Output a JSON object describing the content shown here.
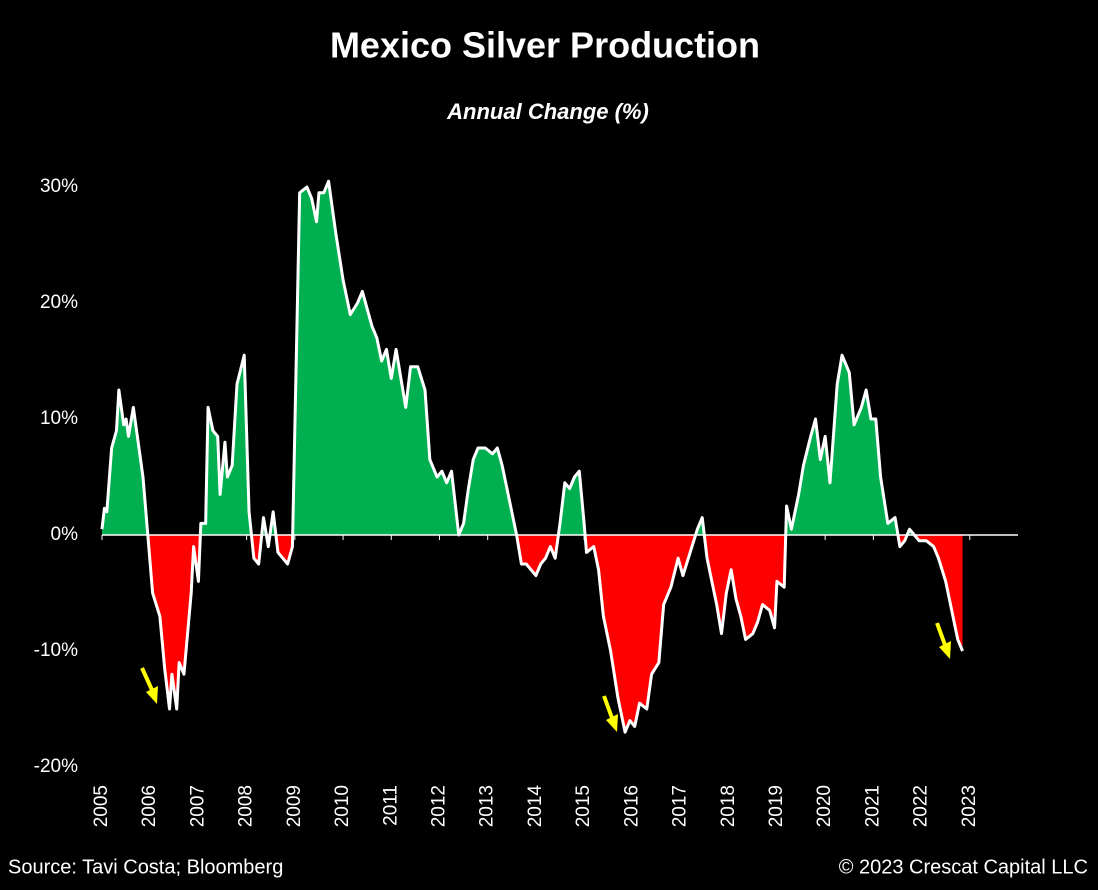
{
  "chart_data": {
    "type": "area",
    "title": "Mexico Silver Production",
    "subtitle": "Annual Change (%)",
    "source": "Source: Tavi Costa; Bloomberg",
    "copyright": "© 2023 Crescat Capital LLC",
    "xlim": [
      2005,
      2024
    ],
    "ylim": [
      -20,
      30
    ],
    "xticks": [
      2005,
      2006,
      2007,
      2008,
      2009,
      2010,
      2011,
      2012,
      2013,
      2014,
      2015,
      2016,
      2017,
      2018,
      2019,
      2020,
      2021,
      2022,
      2023
    ],
    "yticks": [
      {
        "value": -20,
        "label": "-20%"
      },
      {
        "value": -10,
        "label": "-10%"
      },
      {
        "value": 0,
        "label": "0%"
      },
      {
        "value": 10,
        "label": "10%"
      },
      {
        "value": 20,
        "label": "20%"
      },
      {
        "value": 30,
        "label": "30%"
      }
    ],
    "positive_color": "#00b050",
    "negative_color": "#ff0000",
    "line_color": "#ffffff",
    "x": [
      2005.0,
      2005.05,
      2005.1,
      2005.2,
      2005.3,
      2005.35,
      2005.45,
      2005.5,
      2005.55,
      2005.65,
      2005.75,
      2005.85,
      2005.95,
      2006.05,
      2006.2,
      2006.3,
      2006.4,
      2006.45,
      2006.55,
      2006.6,
      2006.7,
      2006.85,
      2006.9,
      2007.0,
      2007.05,
      2007.15,
      2007.2,
      2007.3,
      2007.4,
      2007.45,
      2007.55,
      2007.6,
      2007.7,
      2007.8,
      2007.95,
      2008.05,
      2008.15,
      2008.25,
      2008.35,
      2008.45,
      2008.55,
      2008.65,
      2008.75,
      2008.85,
      2008.95,
      2009.1,
      2009.25,
      2009.35,
      2009.45,
      2009.5,
      2009.6,
      2009.7,
      2009.85,
      2010.0,
      2010.15,
      2010.3,
      2010.4,
      2010.5,
      2010.6,
      2010.7,
      2010.8,
      2010.9,
      2011.0,
      2011.1,
      2011.2,
      2011.3,
      2011.4,
      2011.55,
      2011.7,
      2011.8,
      2011.95,
      2012.05,
      2012.15,
      2012.25,
      2012.4,
      2012.5,
      2012.6,
      2012.7,
      2012.8,
      2012.95,
      2013.1,
      2013.2,
      2013.3,
      2013.45,
      2013.6,
      2013.7,
      2013.8,
      2013.9,
      2014.0,
      2014.1,
      2014.2,
      2014.3,
      2014.4,
      2014.5,
      2014.6,
      2014.7,
      2014.8,
      2014.9,
      2015.0,
      2015.05,
      2015.2,
      2015.3,
      2015.4,
      2015.55,
      2015.7,
      2015.85,
      2015.95,
      2016.05,
      2016.15,
      2016.3,
      2016.4,
      2016.55,
      2016.65,
      2016.8,
      2016.95,
      2017.05,
      2017.2,
      2017.35,
      2017.45,
      2017.55,
      2017.65,
      2017.75,
      2017.85,
      2017.95,
      2018.05,
      2018.15,
      2018.25,
      2018.35,
      2018.5,
      2018.6,
      2018.7,
      2018.85,
      2018.95,
      2019.0,
      2019.15,
      2019.2,
      2019.3,
      2019.45,
      2019.55,
      2019.7,
      2019.8,
      2019.9,
      2020.0,
      2020.1,
      2020.25,
      2020.35,
      2020.5,
      2020.6,
      2020.75,
      2020.85,
      2020.95,
      2021.05,
      2021.15,
      2021.3,
      2021.45,
      2021.55,
      2021.65,
      2021.75,
      2021.85,
      2021.95,
      2022.1,
      2022.25,
      2022.35,
      2022.5,
      2022.6,
      2022.75,
      2022.85
    ],
    "values": [
      0.5,
      2.3,
      2,
      7.5,
      9,
      12.5,
      9.5,
      10,
      8.5,
      11,
      8,
      5,
      0,
      -5,
      -7,
      -11.5,
      -15,
      -12,
      -15,
      -11,
      -12,
      -5,
      -1,
      -4,
      1,
      1,
      11,
      9,
      8.5,
      3.5,
      8,
      5,
      6,
      13,
      15.5,
      2,
      -2,
      -2.5,
      1.5,
      -1,
      2,
      -1.5,
      -2,
      -2.5,
      -1,
      29.5,
      30,
      29,
      27,
      29.5,
      29.5,
      30.5,
      26,
      22,
      19,
      20,
      21,
      19.5,
      18,
      17,
      15,
      16,
      13.5,
      16,
      13.5,
      11,
      14.5,
      14.5,
      12.5,
      6.5,
      5,
      5.5,
      4.5,
      5.5,
      0,
      1,
      4,
      6.5,
      7.5,
      7.5,
      7,
      7.5,
      6,
      3,
      0,
      -2.5,
      -2.5,
      -3,
      -3.5,
      -2.5,
      -2,
      -1,
      -2,
      1,
      4.5,
      4,
      5,
      5.5,
      1,
      -1.5,
      -1,
      -3,
      -7,
      -10,
      -14,
      -17,
      -16,
      -16.5,
      -14.5,
      -15,
      -12,
      -11,
      -6,
      -4.5,
      -2,
      -3.5,
      -1.5,
      0.5,
      1.5,
      -2,
      -4,
      -6,
      -8.5,
      -5,
      -3,
      -5.5,
      -7,
      -9,
      -8.5,
      -7.5,
      -6,
      -6.5,
      -8,
      -4,
      -4.5,
      2.5,
      0.5,
      3.5,
      6,
      8.5,
      10,
      6.5,
      8.5,
      4.5,
      13,
      15.5,
      14,
      9.5,
      11,
      12.5,
      10,
      10,
      5,
      1,
      1.5,
      -1,
      -0.5,
      0.5,
      0,
      -0.5,
      -0.5,
      -1,
      -2,
      -4,
      -6,
      -9,
      -10
    ]
  }
}
